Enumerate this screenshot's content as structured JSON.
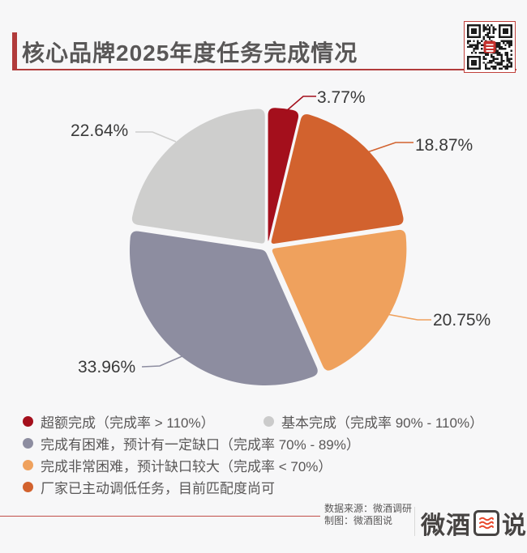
{
  "header": {
    "title": "核心品牌2025年度任务完成情况"
  },
  "chart_data": {
    "type": "pie",
    "title": "核心品牌2025年度任务完成情况",
    "unit": "%",
    "total": 100,
    "start_angle_deg": 0,
    "direction": "clockwise",
    "legend_position": "bottom",
    "slices": [
      {
        "name": "超额完成（完成率 > 110%）",
        "value": 3.77,
        "label": "3.77%",
        "color": "#A40F1C"
      },
      {
        "name": "厂家已主动调低任务，目前匹配度尚可",
        "value": 18.87,
        "label": "18.87%",
        "color": "#D2622E"
      },
      {
        "name": "完成非常困难，预计缺口较大（完成率 < 70%）",
        "value": 20.75,
        "label": "20.75%",
        "color": "#EFA15D"
      },
      {
        "name": "完成有困难，预计有一定缺口（完成率 70% - 89%）",
        "value": 33.96,
        "label": "33.96%",
        "color": "#8D8DA0"
      },
      {
        "name": "基本完成（完成率 90% - 110%）",
        "value": 22.64,
        "label": "22.64%",
        "color": "#CECECD"
      }
    ]
  },
  "legend": {
    "items": [
      {
        "label": "超额完成（完成率 > 110%）",
        "color": "#A40F1C"
      },
      {
        "label": "基本完成（完成率 90% - 110%）",
        "color": "#CBCBCB"
      },
      {
        "label": "完成有困难，预计有一定缺口（完成率 70% - 89%）",
        "color": "#8D8DA0"
      },
      {
        "label": "完成非常困难，预计缺口较大（完成率 < 70%）",
        "color": "#EFA15D"
      },
      {
        "label": "厂家已主动调低任务，目前匹配度尚可",
        "color": "#D2622E"
      }
    ]
  },
  "footer": {
    "source_line": "数据来源：微酒调研",
    "credit_line": "制图：微酒图说",
    "logo_text_left": "微酒",
    "logo_boxed_char": "图",
    "logo_text_right": "说"
  },
  "colors": {
    "background": "#F7F7F8",
    "accent_red": "#B13B3B",
    "title_text": "#595757",
    "label_text": "#3A3A3A",
    "legend_text": "#595757",
    "qr_border": "#C0403C",
    "logo_wave_red": "#E8472B"
  }
}
